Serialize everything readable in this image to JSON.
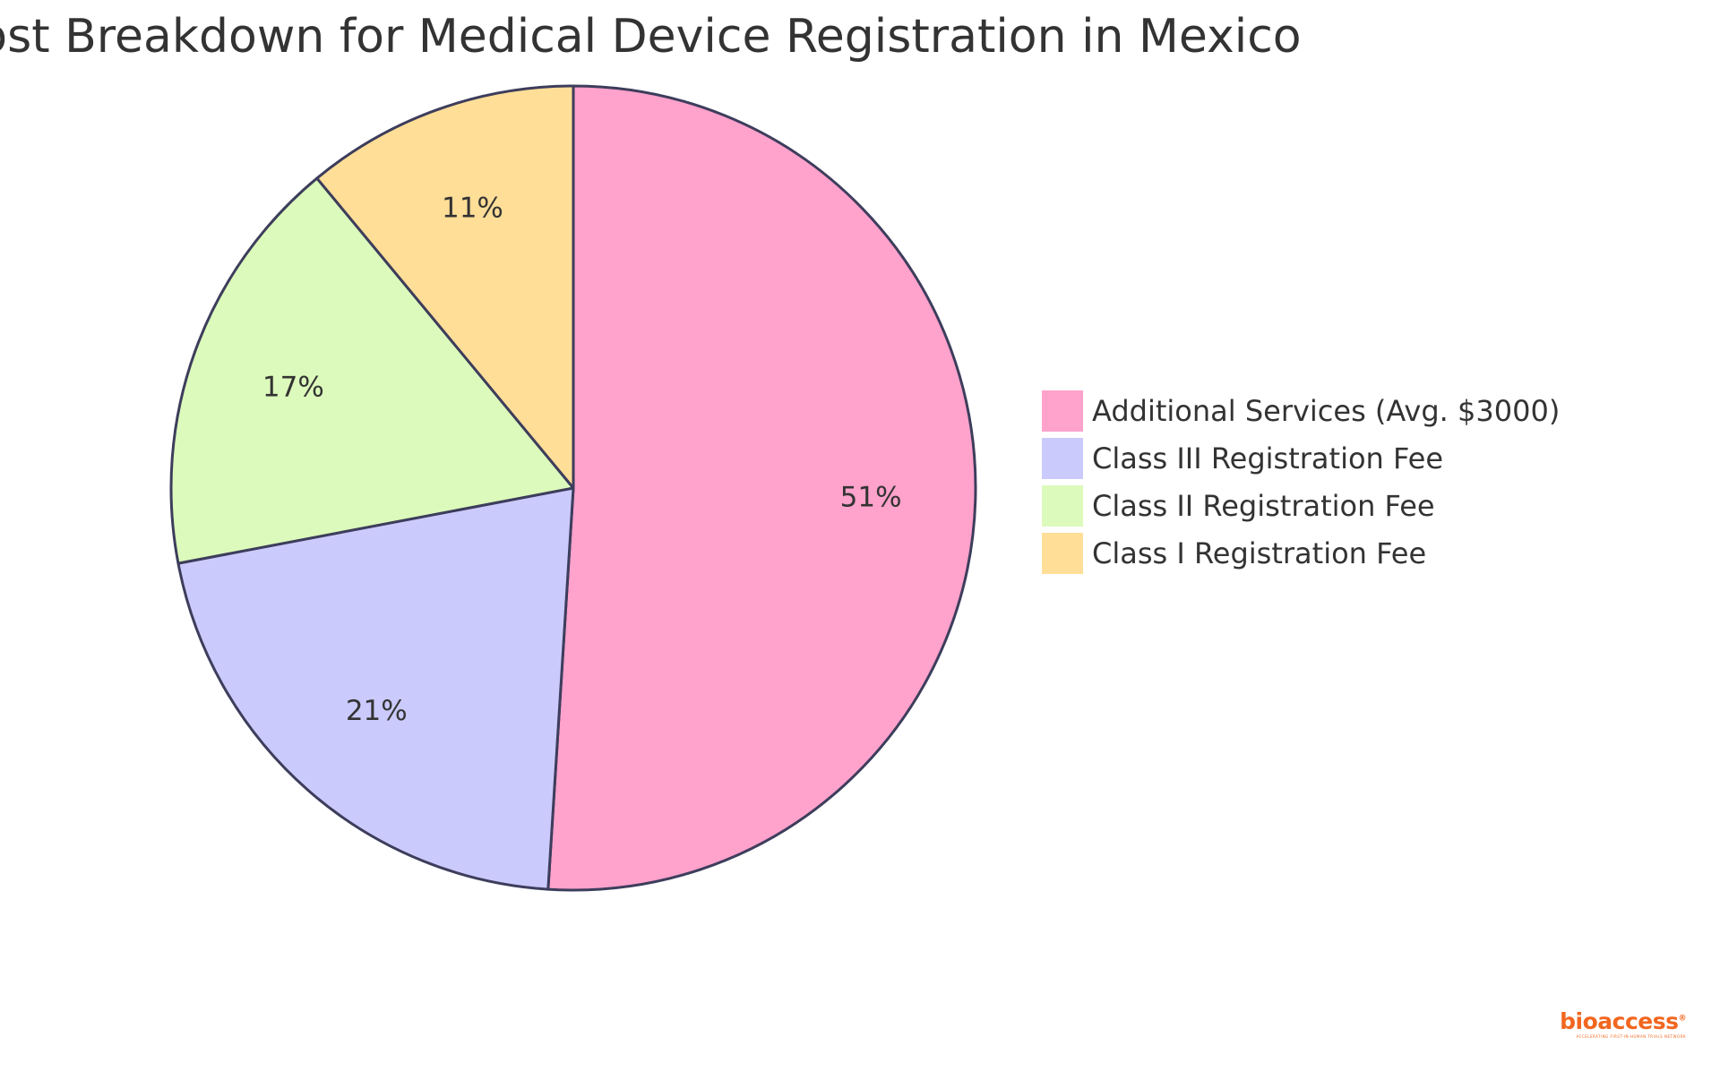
{
  "chart_data": {
    "type": "pie",
    "title": "Cost Breakdown for Medical Device Registration in Mexico",
    "slices": [
      {
        "label": "Additional Services (Avg. $3000)",
        "percent": 51,
        "display": "51%",
        "color": "#ffa2cc"
      },
      {
        "label": "Class III Registration Fee",
        "percent": 21,
        "display": "21%",
        "color": "#cbcafd"
      },
      {
        "label": "Class II Registration Fee",
        "percent": 17,
        "display": "17%",
        "color": "#dcfabb"
      },
      {
        "label": "Class I Registration Fee",
        "percent": 11,
        "display": "11%",
        "color": "#ffde98"
      }
    ],
    "legend_position": "right",
    "stroke_color": "#3d3d5c"
  },
  "branding": {
    "logo_name": "bioaccess",
    "logo_tag": "ACCELERATING FIRST-IN-HUMAN TRIALS NETWORK"
  }
}
